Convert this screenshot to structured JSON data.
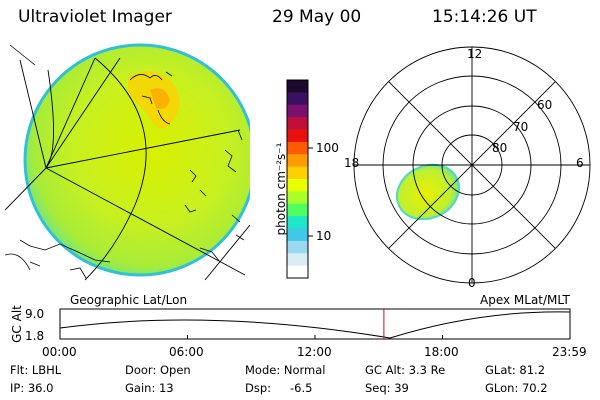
{
  "header": {
    "instrument": "Ultraviolet Imager",
    "date": "29 May 00",
    "time": "15:14:26 UT"
  },
  "colorbar": {
    "unit_label": "photon cm⁻²s⁻¹",
    "tick_100": "100",
    "tick_10": "10",
    "colors": [
      "#1a0a2e",
      "#3c1060",
      "#7a1070",
      "#c0103a",
      "#e81010",
      "#ff5a00",
      "#ff9a00",
      "#ffd000",
      "#e8ff00",
      "#a8ff2a",
      "#50ff60",
      "#1ee6c8",
      "#40c8e8",
      "#9ad8f0",
      "#d8ecf4",
      "#ffffff"
    ]
  },
  "geo_panel": {
    "label": "Geographic Lat/Lon"
  },
  "polar_panel": {
    "label": "Apex MLat/MLT",
    "mlt_top": "12",
    "mlt_left": "18",
    "mlt_right": "6",
    "mlt_bottom": "0",
    "lat_60": "60",
    "lat_70": "70",
    "lat_80": "80"
  },
  "altitude_plot": {
    "axis_label": "GC Alt",
    "y_max": "9.0",
    "y_min": "1.8",
    "x_ticks": [
      "00:00",
      "06:00",
      "12:00",
      "18:00",
      "23:59"
    ],
    "current_time_fraction": 0.635
  },
  "info": {
    "flt": "Flt: LBHL",
    "door": "Door: Open",
    "mode": "Mode: Normal",
    "gc_alt": "GC Alt: 3.3 Re",
    "glat": "GLat: 81.2",
    "ip": "IP: 36.0",
    "gain": "Gain: 13",
    "dsp_label": "Dsp:",
    "dsp_value": "-6.5",
    "seq": "Seq: 39",
    "glon": "GLon: 70.2"
  }
}
